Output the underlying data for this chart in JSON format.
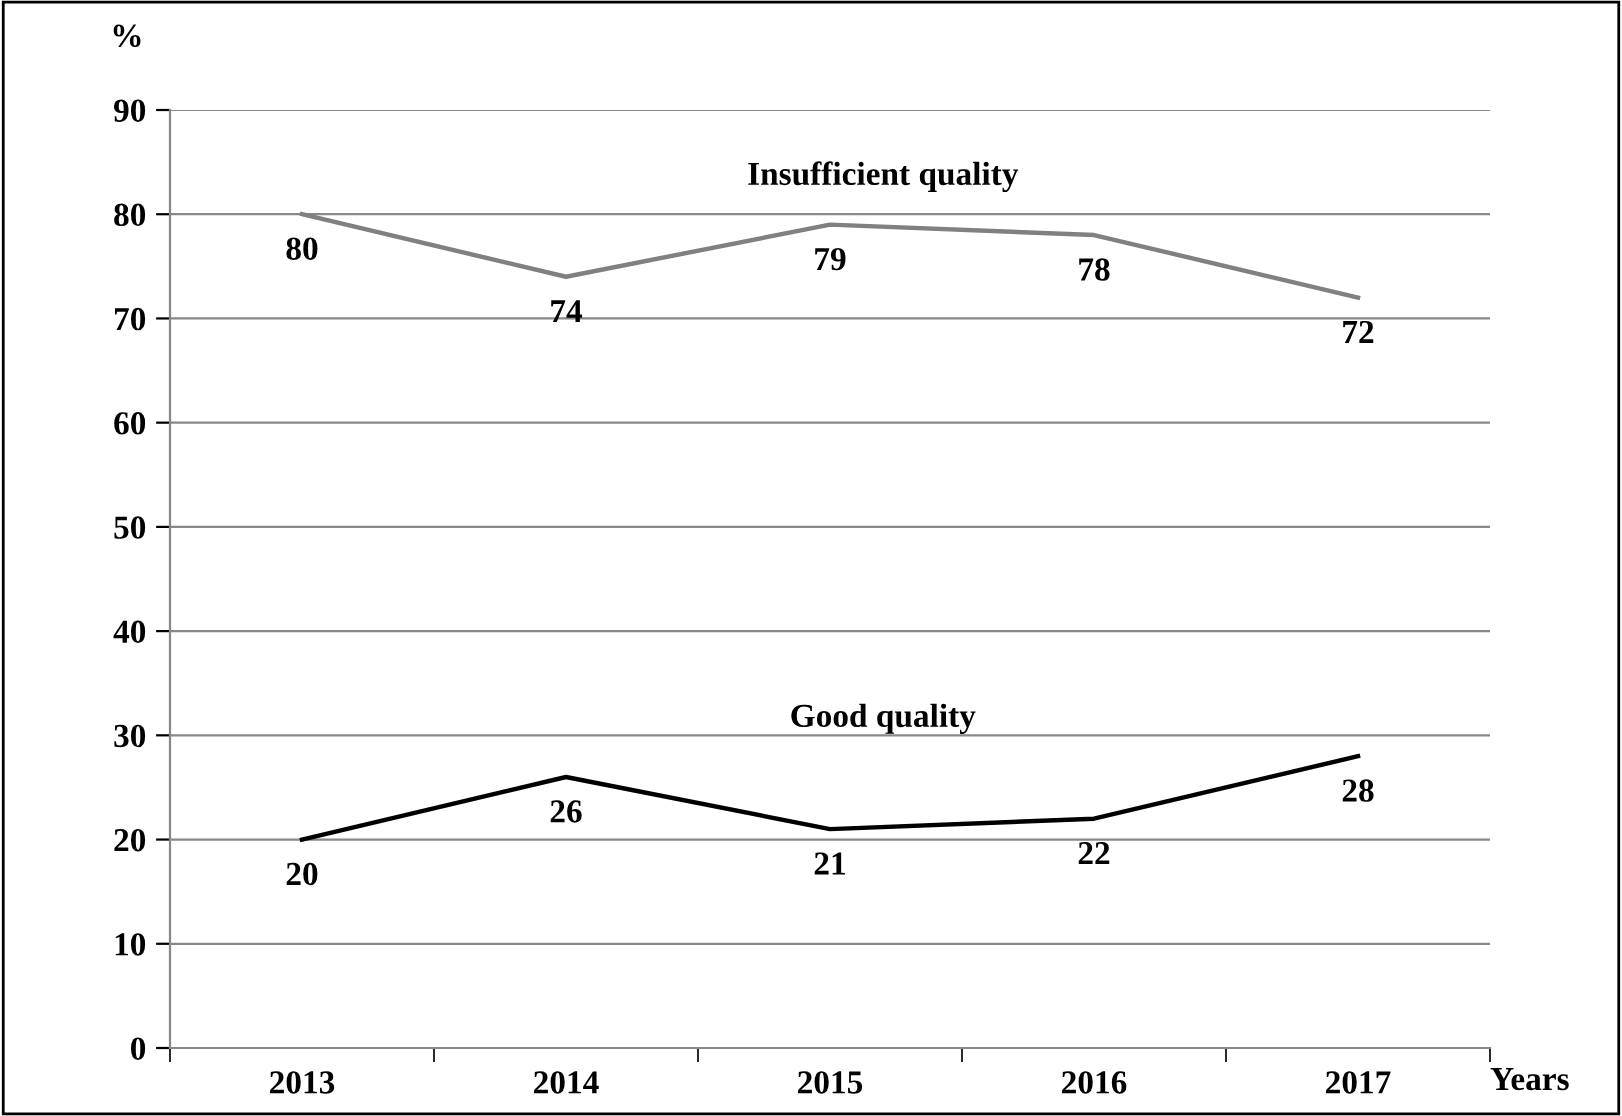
{
  "chart_data": {
    "type": "line",
    "ylabel": "%",
    "xlabel": "Years",
    "categories": [
      "2013",
      "2014",
      "2015",
      "2016",
      "2017"
    ],
    "series": [
      {
        "name": "Insufficient quality",
        "color": "#808080",
        "values": [
          80,
          74,
          79,
          78,
          72
        ]
      },
      {
        "name": "Good quality",
        "color": "#000000",
        "values": [
          20,
          26,
          21,
          22,
          28
        ]
      }
    ],
    "ylim": [
      0,
      90
    ],
    "yticks": [
      0,
      10,
      20,
      30,
      40,
      50,
      60,
      70,
      80,
      90
    ],
    "grid": "y",
    "data_labels": true,
    "marker": "none",
    "line_style": "solid",
    "legend": false
  }
}
